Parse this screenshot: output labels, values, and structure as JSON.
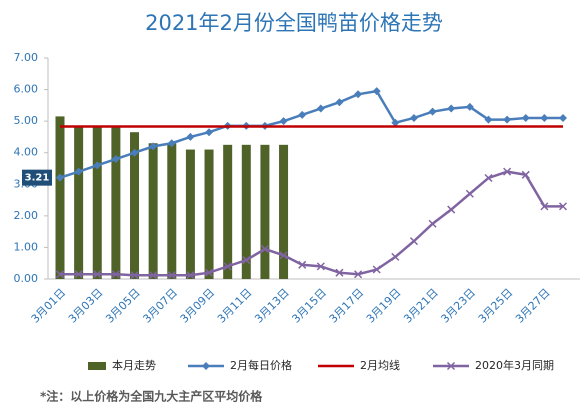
{
  "chart_data": {
    "type": "combo",
    "title": "2021年2月份全国鸭苗价格走势",
    "note": "*注：以上价格为全国九大主产区平均价格",
    "categories": [
      "3月01日",
      null,
      "3月03日",
      null,
      "3月05日",
      null,
      "3月07日",
      null,
      "3月09日",
      null,
      "3月11日",
      null,
      "3月13日",
      null,
      "3月15日",
      null,
      "3月17日",
      null,
      "3月19日",
      null,
      "3月21日",
      null,
      "3月23日",
      null,
      "3月25日",
      null,
      "3月27日",
      null
    ],
    "ylim": [
      0,
      7
    ],
    "yticks": [
      {
        "value": 0,
        "label": "0.00"
      },
      {
        "value": 1,
        "label": "1.00"
      },
      {
        "value": 2,
        "label": "2.00"
      },
      {
        "value": 3,
        "label": "3.00"
      },
      {
        "value": 4,
        "label": "4.00"
      },
      {
        "value": 5,
        "label": "5.00"
      },
      {
        "value": 6,
        "label": "6.00"
      },
      {
        "value": 7,
        "label": "7.00"
      }
    ],
    "grid": false,
    "legend": "bottom",
    "series": [
      {
        "name": "本月走势",
        "type": "bar",
        "color": "#4f6228",
        "values": [
          5.15,
          4.85,
          4.85,
          4.85,
          4.65,
          4.3,
          4.3,
          4.1,
          4.1,
          4.25,
          4.25,
          4.25,
          4.25,
          null,
          null,
          null,
          null,
          null,
          null,
          null,
          null,
          null,
          null,
          null,
          null,
          null,
          null,
          null
        ]
      },
      {
        "name": "2月每日价格",
        "type": "line",
        "marker": "diamond",
        "color": "#4a7ebb",
        "values": [
          3.21,
          3.4,
          3.6,
          3.8,
          4.0,
          4.2,
          4.3,
          4.5,
          4.65,
          4.85,
          4.85,
          4.85,
          5.0,
          5.2,
          5.4,
          5.6,
          5.85,
          5.95,
          4.95,
          5.1,
          5.3,
          5.4,
          5.45,
          5.05,
          5.05,
          5.1,
          5.1,
          5.1
        ]
      },
      {
        "name": "2月均线",
        "type": "line",
        "marker": "none",
        "color": "#c00000",
        "values": [
          4.83,
          4.83,
          4.83,
          4.83,
          4.83,
          4.83,
          4.83,
          4.83,
          4.83,
          4.83,
          4.83,
          4.83,
          4.83,
          4.83,
          4.83,
          4.83,
          4.83,
          4.83,
          4.83,
          4.83,
          4.83,
          4.83,
          4.83,
          4.83,
          4.83,
          4.83,
          4.83,
          4.83
        ]
      },
      {
        "name": "2020年3月同期",
        "type": "line",
        "marker": "x",
        "color": "#8064a2",
        "values": [
          0.15,
          0.15,
          0.15,
          0.15,
          0.12,
          0.12,
          0.12,
          0.12,
          0.2,
          0.4,
          0.6,
          0.95,
          0.75,
          0.45,
          0.4,
          0.2,
          0.15,
          0.3,
          0.7,
          1.2,
          1.75,
          2.2,
          2.7,
          3.2,
          3.4,
          3.3,
          2.3,
          2.3
        ]
      }
    ]
  }
}
